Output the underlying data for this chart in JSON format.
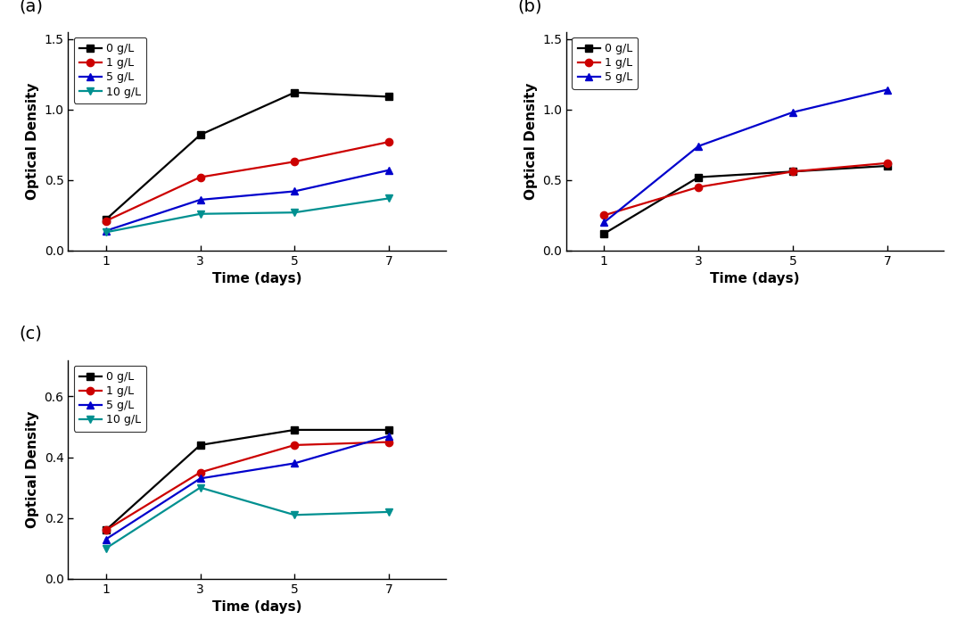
{
  "x": [
    1,
    3,
    5,
    7
  ],
  "panel_a": {
    "series": [
      {
        "label": "0 g/L",
        "color": "#000000",
        "marker": "s",
        "values": [
          0.22,
          0.82,
          1.12,
          1.09
        ]
      },
      {
        "label": "1 g/L",
        "color": "#cc0000",
        "marker": "o",
        "values": [
          0.21,
          0.52,
          0.63,
          0.77
        ]
      },
      {
        "label": "5 g/L",
        "color": "#0000cc",
        "marker": "^",
        "values": [
          0.14,
          0.36,
          0.42,
          0.57
        ]
      },
      {
        "label": "10 g/L",
        "color": "#009090",
        "marker": "v",
        "values": [
          0.13,
          0.26,
          0.27,
          0.37
        ]
      }
    ],
    "ylim": [
      0.0,
      1.55
    ],
    "yticks": [
      0.0,
      0.5,
      1.0,
      1.5
    ]
  },
  "panel_b": {
    "series": [
      {
        "label": "0 g/L",
        "color": "#000000",
        "marker": "s",
        "values": [
          0.12,
          0.52,
          0.56,
          0.6
        ]
      },
      {
        "label": "1 g/L",
        "color": "#cc0000",
        "marker": "o",
        "values": [
          0.25,
          0.45,
          0.56,
          0.62
        ]
      },
      {
        "label": "5 g/L",
        "color": "#0000cc",
        "marker": "^",
        "values": [
          0.2,
          0.74,
          0.98,
          1.14
        ]
      }
    ],
    "ylim": [
      0.0,
      1.55
    ],
    "yticks": [
      0.0,
      0.5,
      1.0,
      1.5
    ]
  },
  "panel_c": {
    "series": [
      {
        "label": "0 g/L",
        "color": "#000000",
        "marker": "s",
        "values": [
          0.16,
          0.44,
          0.49,
          0.49
        ]
      },
      {
        "label": "1 g/L",
        "color": "#cc0000",
        "marker": "o",
        "values": [
          0.16,
          0.35,
          0.44,
          0.45
        ]
      },
      {
        "label": "5 g/L",
        "color": "#0000cc",
        "marker": "^",
        "values": [
          0.13,
          0.33,
          0.38,
          0.47
        ]
      },
      {
        "label": "10 g/L",
        "color": "#009090",
        "marker": "v",
        "values": [
          0.1,
          0.3,
          0.21,
          0.22
        ]
      }
    ],
    "ylim": [
      0.0,
      0.72
    ],
    "yticks": [
      0.0,
      0.2,
      0.4,
      0.6
    ]
  },
  "xlabel": "Time (days)",
  "ylabel": "Optical Density",
  "xticks": [
    1,
    3,
    5,
    7
  ],
  "xlim": [
    0.2,
    8.2
  ],
  "panel_labels": [
    "(a)",
    "(b)",
    "(c)"
  ],
  "linewidth": 1.6,
  "markersize": 6,
  "tick_fontsize": 10,
  "label_fontsize": 11,
  "legend_fontsize": 9,
  "panel_label_fontsize": 14
}
